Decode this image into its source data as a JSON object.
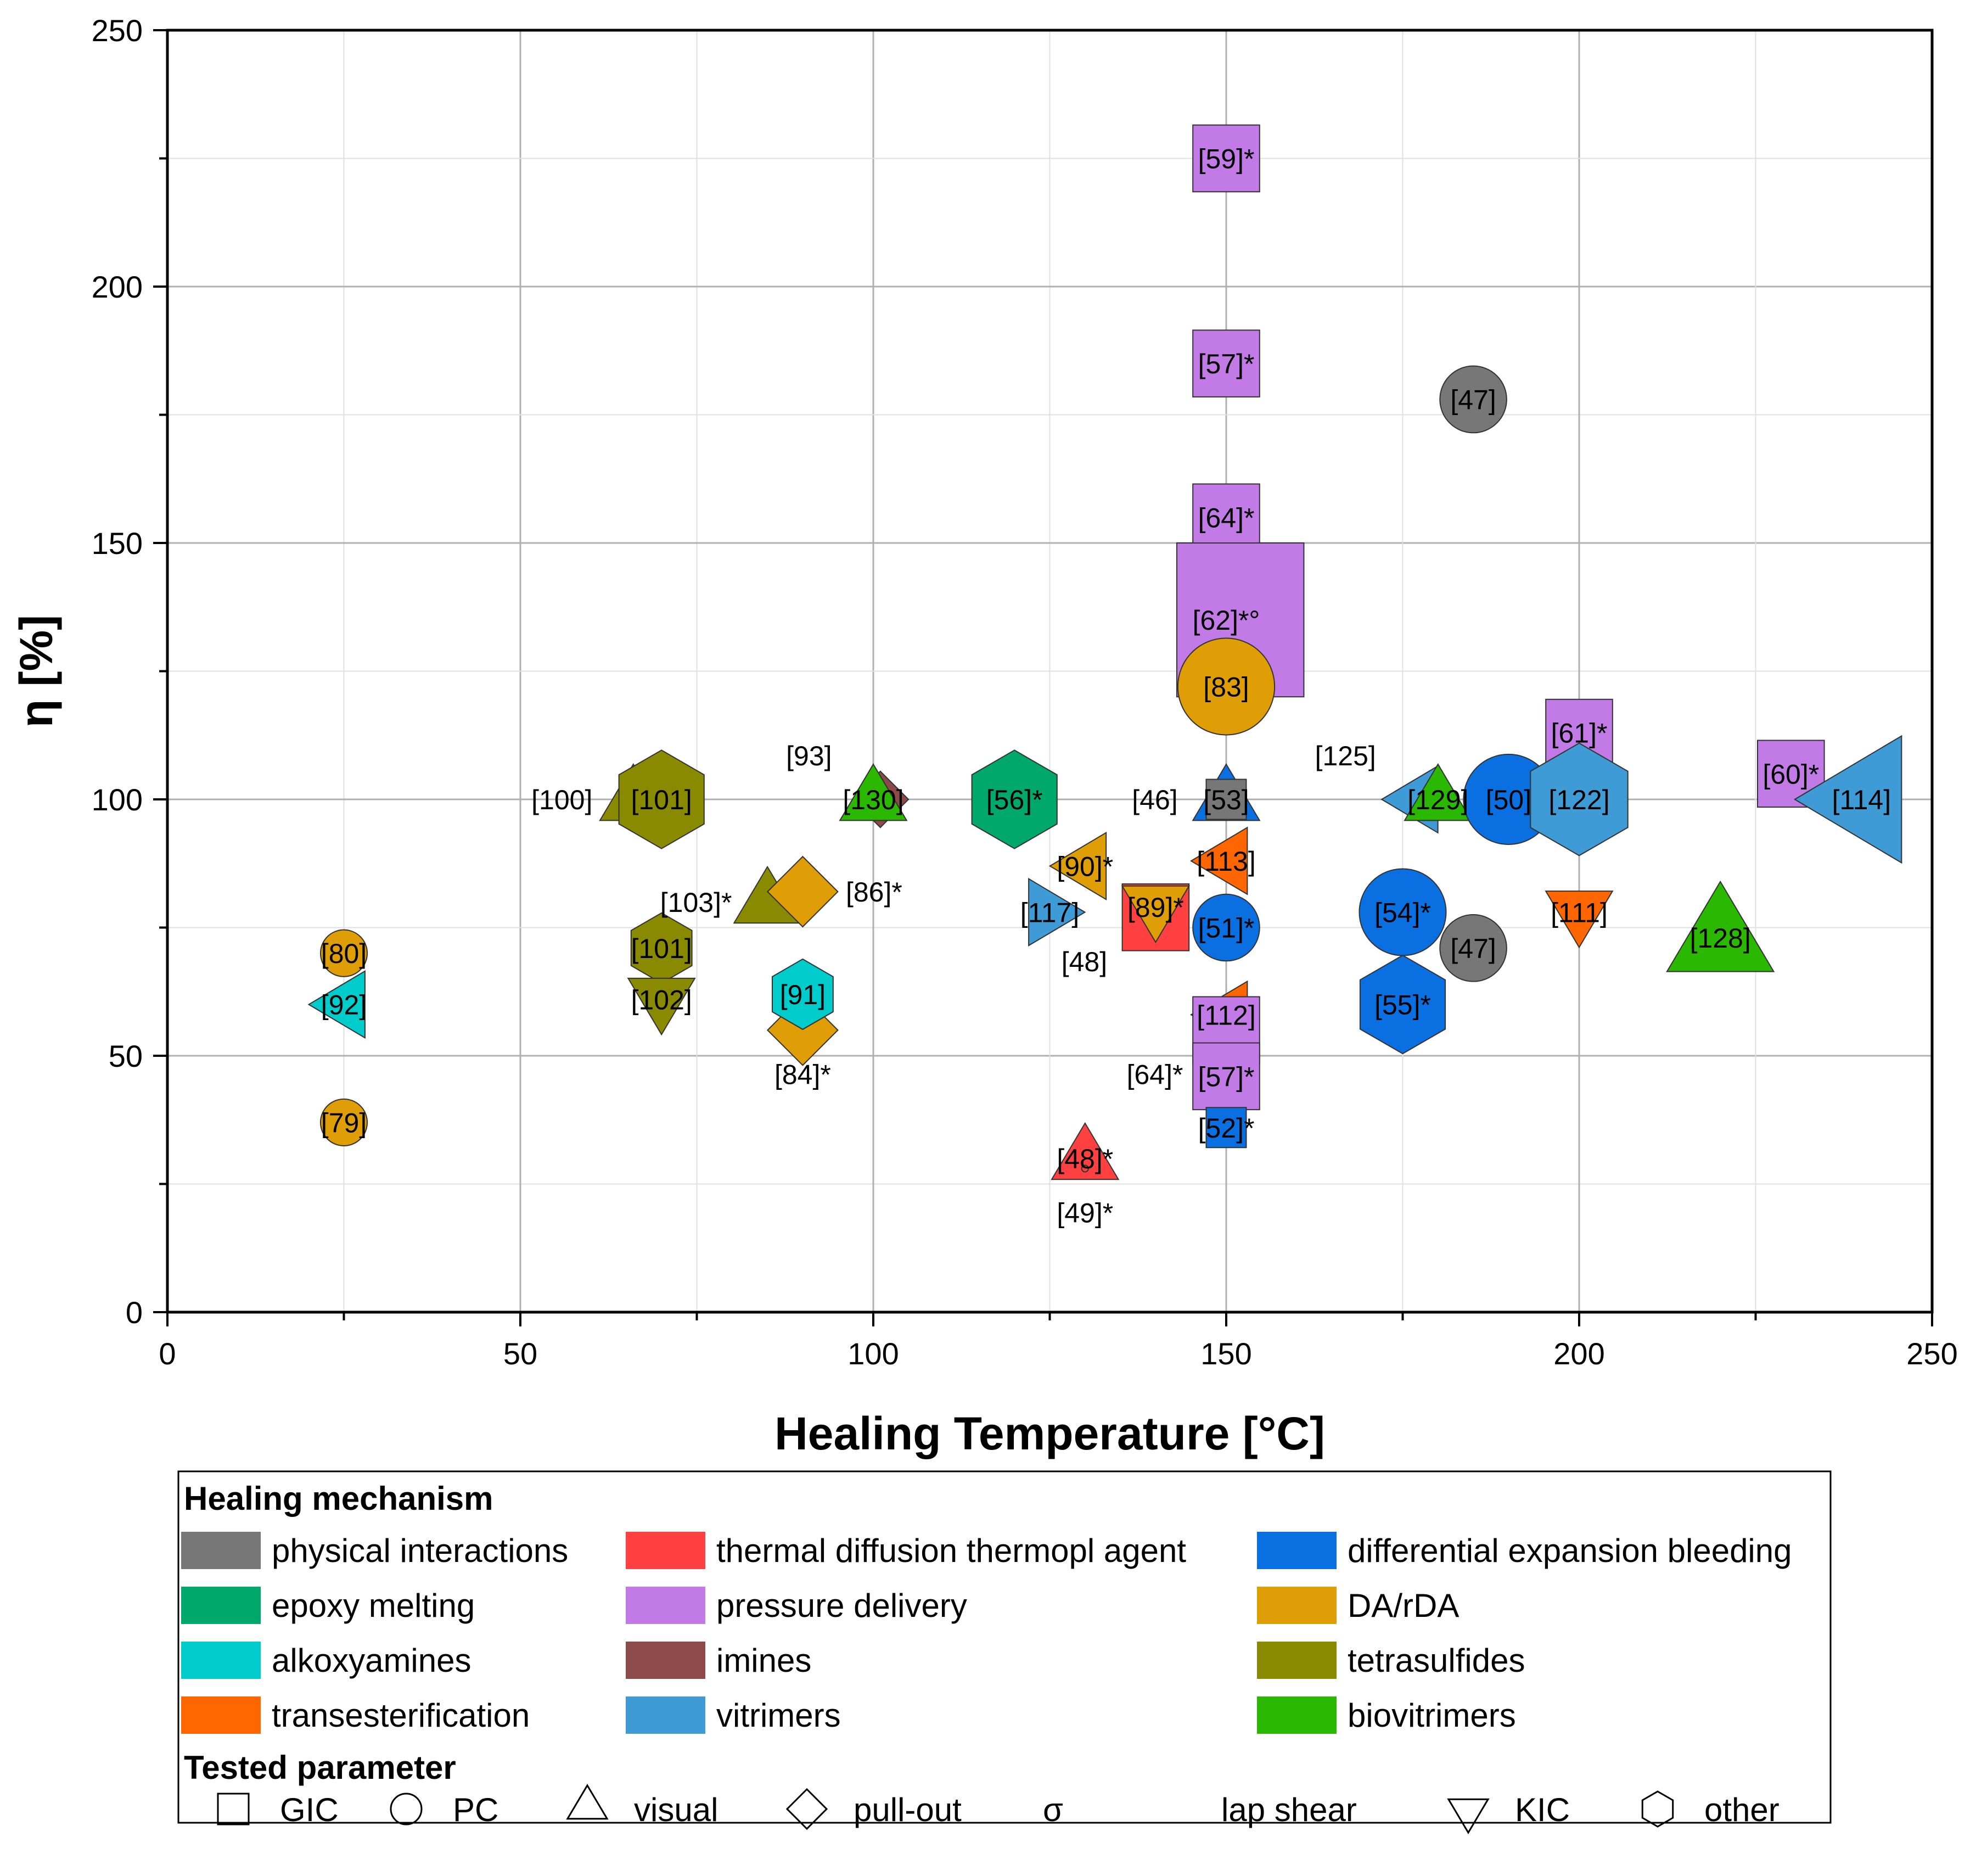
{
  "chart_data": {
    "type": "scatter",
    "xlabel": "Healing Temperature [°C]",
    "ylabel": "η [%]",
    "xlim": [
      0,
      250
    ],
    "ylim": [
      0,
      250
    ],
    "xticks": [
      "0",
      "50",
      "100",
      "150",
      "200",
      "250"
    ],
    "yticks": [
      "0",
      "50",
      "100",
      "150",
      "200",
      "250"
    ],
    "grid": true,
    "mechanisms": [
      {
        "key": "physical",
        "label": "physical interactions",
        "color": "#777777"
      },
      {
        "key": "thermal",
        "label": "thermal diffusion thermopl agent",
        "color": "#ff4040"
      },
      {
        "key": "diffexp",
        "label": "differential expansion bleeding",
        "color": "#0a6fe0"
      },
      {
        "key": "epoxy",
        "label": "epoxy melting",
        "color": "#00a86b"
      },
      {
        "key": "pressure",
        "label": "pressure delivery",
        "color": "#c27ae6"
      },
      {
        "key": "dada",
        "label": "DA/rDA",
        "color": "#e09e06"
      },
      {
        "key": "alkoxy",
        "label": "alkoxyamines",
        "color": "#00cccc"
      },
      {
        "key": "imines",
        "label": "imines",
        "color": "#8c4a4a"
      },
      {
        "key": "tetra",
        "label": "tetrasulfides",
        "color": "#8a8a00"
      },
      {
        "key": "trans",
        "label": "transesterification",
        "color": "#ff6600"
      },
      {
        "key": "vitri",
        "label": "vitrimers",
        "color": "#3f9bd6"
      },
      {
        "key": "biovit",
        "label": "biovitrimers",
        "color": "#2ab800"
      }
    ],
    "parameters": [
      {
        "key": "square",
        "label": "GIC"
      },
      {
        "key": "circle",
        "label": "PC"
      },
      {
        "key": "triangle",
        "label": "visual"
      },
      {
        "key": "diamond",
        "label": "pull-out"
      },
      {
        "key": "sigma",
        "label": "σ",
        "symbol_only": true
      },
      {
        "key": "lapshear",
        "label": "lap shear",
        "symbol_only": true
      },
      {
        "key": "invtriangle",
        "label": "KIC"
      },
      {
        "key": "hexagon",
        "label": "other"
      }
    ],
    "points": [
      {
        "x": 150,
        "y": 225,
        "shape": "square",
        "mech": "pressure",
        "label": "[59]*"
      },
      {
        "x": 150,
        "y": 185,
        "shape": "square",
        "mech": "pressure",
        "label": "[57]*"
      },
      {
        "x": 150,
        "y": 155,
        "shape": "square",
        "mech": "pressure",
        "label": "[64]*"
      },
      {
        "x": 150,
        "y": 135,
        "shape": "bigsquare",
        "mech": "pressure",
        "label": "[62]*°"
      },
      {
        "x": 150,
        "y": 122,
        "shape": "circle",
        "mech": "dada",
        "label": "[83]",
        "size": 1.45
      },
      {
        "x": 185,
        "y": 178,
        "shape": "circle",
        "mech": "physical",
        "label": "[47]"
      },
      {
        "x": 185,
        "y": 71,
        "shape": "circle",
        "mech": "physical",
        "label": "[47]"
      },
      {
        "x": 66,
        "y": 100,
        "shape": "triangle",
        "mech": "tetra",
        "label": "[100]",
        "label_dx": -1
      },
      {
        "x": 70,
        "y": 100,
        "shape": "hexagon",
        "mech": "tetra",
        "label": "[101]",
        "size": 1.4
      },
      {
        "x": 70,
        "y": 71,
        "shape": "hexagon",
        "mech": "tetra",
        "label": "[101]"
      },
      {
        "x": 70,
        "y": 61,
        "shape": "invtriangle",
        "mech": "tetra",
        "label": "[102]"
      },
      {
        "x": 85,
        "y": 80,
        "shape": "triangle",
        "mech": "tetra",
        "label": "[103]*",
        "label_dx": -1
      },
      {
        "x": 90,
        "y": 82,
        "shape": "diamond",
        "mech": "dada",
        "label": "[86]*",
        "label_dx": 1
      },
      {
        "x": 90,
        "y": 55,
        "shape": "diamond",
        "mech": "dada",
        "label": "[84]*",
        "label_dy": 1
      },
      {
        "x": 90,
        "y": 62,
        "shape": "hexagon",
        "mech": "alkoxy",
        "label": "[91]"
      },
      {
        "x": 25,
        "y": 70,
        "shape": "circle",
        "mech": "dada",
        "label": "[80]",
        "size": 0.7
      },
      {
        "x": 25,
        "y": 60,
        "shape": "lefttriangle",
        "mech": "alkoxy",
        "label": "[92]"
      },
      {
        "x": 25,
        "y": 37,
        "shape": "circle",
        "mech": "dada",
        "label": "[79]",
        "size": 0.7
      },
      {
        "x": 101,
        "y": 100,
        "shape": "diamond",
        "mech": "imines",
        "label": "[93]",
        "label_dx": -1,
        "label_dy": -1,
        "size": 0.8
      },
      {
        "x": 100,
        "y": 100,
        "shape": "triangle",
        "mech": "biovit",
        "label": "[130]"
      },
      {
        "x": 120,
        "y": 100,
        "shape": "hexagon",
        "mech": "epoxy",
        "label": "[56]*",
        "size": 1.4
      },
      {
        "x": 130,
        "y": 87,
        "shape": "lefttriangle",
        "mech": "dada",
        "label": "[90]*"
      },
      {
        "x": 125,
        "y": 78,
        "shape": "righttriangle",
        "mech": "vitri",
        "label": "[117]"
      },
      {
        "x": 140,
        "y": 77,
        "shape": "square",
        "mech": "thermal",
        "label": "[48]",
        "label_dx": -1,
        "label_dy": 1
      },
      {
        "x": 140,
        "y": 79,
        "shape": "invtriangle",
        "mech": "dada",
        "label": "[89]*"
      },
      {
        "x": 150,
        "y": 100,
        "shape": "triangle",
        "mech": "diffexp",
        "label": "[53]"
      },
      {
        "x": 150,
        "y": 100,
        "shape": "square",
        "mech": "physical",
        "label": "[46]",
        "label_dx": -1,
        "size": 0.6
      },
      {
        "x": 150,
        "y": 88,
        "shape": "lefttriangle",
        "mech": "trans",
        "label": "[113]"
      },
      {
        "x": 150,
        "y": 75,
        "shape": "circle",
        "mech": "diffexp",
        "label": "[51]*"
      },
      {
        "x": 150,
        "y": 58,
        "shape": "lefttriangle",
        "mech": "trans",
        "label": "[112]"
      },
      {
        "x": 150,
        "y": 55,
        "shape": "square",
        "mech": "pressure",
        "label": "[64]*",
        "label_dx": -1,
        "label_dy": 1
      },
      {
        "x": 150,
        "y": 46,
        "shape": "square",
        "mech": "pressure",
        "label": "[57]*"
      },
      {
        "x": 150,
        "y": 36,
        "shape": "square",
        "mech": "diffexp",
        "label": "[52]*",
        "size": 0.6
      },
      {
        "x": 130,
        "y": 30,
        "shape": "triangle",
        "mech": "thermal",
        "label": "[48]*"
      },
      {
        "x": 130,
        "y": 28,
        "shape": "circle",
        "mech": "thermal",
        "label": "[49]*",
        "label_dy": 1,
        "size": 0.1
      },
      {
        "x": 175,
        "y": 78,
        "shape": "circle",
        "mech": "diffexp",
        "label": "[54]*",
        "size": 1.3
      },
      {
        "x": 175,
        "y": 60,
        "shape": "hexagon",
        "mech": "diffexp",
        "label": "[55]*",
        "size": 1.4
      },
      {
        "x": 177,
        "y": 100,
        "shape": "lefttriangle",
        "mech": "vitri",
        "label": "[125]",
        "label_dx": -1,
        "label_dy": -1
      },
      {
        "x": 180,
        "y": 100,
        "shape": "triangle",
        "mech": "biovit",
        "label": "[129]"
      },
      {
        "x": 190,
        "y": 100,
        "shape": "circle",
        "mech": "diffexp",
        "label": "[50]",
        "size": 1.35
      },
      {
        "x": 200,
        "y": 113,
        "shape": "square",
        "mech": "pressure",
        "label": "[61]*"
      },
      {
        "x": 200,
        "y": 100,
        "shape": "hexagon",
        "mech": "vitri",
        "label": "[122]",
        "size": 1.6
      },
      {
        "x": 200,
        "y": 78,
        "shape": "invtriangle",
        "mech": "trans",
        "label": "[111]"
      },
      {
        "x": 220,
        "y": 73,
        "shape": "triangle",
        "mech": "biovit",
        "label": "[128]",
        "size": 1.6
      },
      {
        "x": 230,
        "y": 105,
        "shape": "square",
        "mech": "pressure",
        "label": "[60]*"
      },
      {
        "x": 240,
        "y": 100,
        "shape": "lefttriangle",
        "mech": "vitri",
        "label": "[114]",
        "size": 1.9
      }
    ]
  }
}
